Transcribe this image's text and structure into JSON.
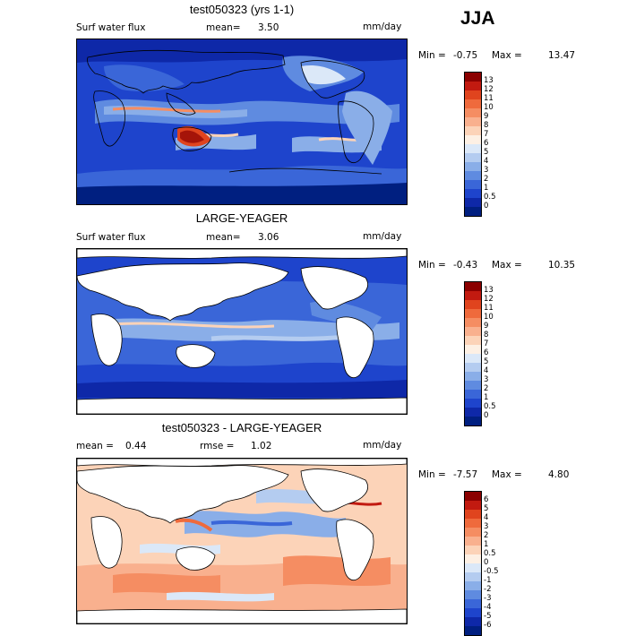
{
  "season": "JJA",
  "panels": [
    {
      "title": "test050323 (yrs 1-1)",
      "left_label": "Surf water flux",
      "mean_label": "mean=",
      "mean_value": "3.50",
      "units": "mm/day",
      "min_label": "Min =",
      "min_value": "-0.75",
      "max_label": "Max =",
      "max_value": "13.47",
      "colorbar_ticks": [
        "13",
        "12",
        "11",
        "10",
        "9",
        "8",
        "7",
        "6",
        "5",
        "4",
        "3",
        "2",
        "1",
        "0.5",
        "0"
      ],
      "colorbar_colors": [
        "#8b0000",
        "#c21a10",
        "#e0441e",
        "#ef6a3c",
        "#f58d62",
        "#f9b08e",
        "#fcd3b8",
        "#fdf0e4",
        "#dbe8f8",
        "#b4ccf0",
        "#8aaee8",
        "#5f8be0",
        "#3a66d8",
        "#1e44cc",
        "#0e28a8",
        "#001f80"
      ]
    },
    {
      "title": "LARGE-YEAGER",
      "left_label": "Surf water flux",
      "mean_label": "mean=",
      "mean_value": "3.06",
      "units": "mm/day",
      "min_label": "Min =",
      "min_value": "-0.43",
      "max_label": "Max =",
      "max_value": "10.35",
      "colorbar_ticks": [
        "13",
        "12",
        "11",
        "10",
        "9",
        "8",
        "7",
        "6",
        "5",
        "4",
        "3",
        "2",
        "1",
        "0.5",
        "0"
      ],
      "colorbar_colors": [
        "#8b0000",
        "#c21a10",
        "#e0441e",
        "#ef6a3c",
        "#f58d62",
        "#f9b08e",
        "#fcd3b8",
        "#fdf0e4",
        "#dbe8f8",
        "#b4ccf0",
        "#8aaee8",
        "#5f8be0",
        "#3a66d8",
        "#1e44cc",
        "#0e28a8",
        "#001f80"
      ]
    },
    {
      "title": "test050323 - LARGE-YEAGER",
      "mean_label": "mean =",
      "mean_value": "0.44",
      "rmse_label": "rmse =",
      "rmse_value": "1.02",
      "units": "mm/day",
      "min_label": "Min =",
      "min_value": "-7.57",
      "max_label": "Max =",
      "max_value": "4.80",
      "colorbar_ticks": [
        "6",
        "5",
        "4",
        "3",
        "2",
        "1",
        "0.5",
        "0",
        "-0.5",
        "-1",
        "-2",
        "-3",
        "-4",
        "-5",
        "-6"
      ],
      "colorbar_colors": [
        "#8b0000",
        "#c21a10",
        "#e0441e",
        "#ef6a3c",
        "#f58d62",
        "#f9b08e",
        "#fcd3b8",
        "#fdf0e4",
        "#dbe8f8",
        "#b4ccf0",
        "#8aaee8",
        "#5f8be0",
        "#3a66d8",
        "#1e44cc",
        "#0e28a8",
        "#001f80"
      ]
    }
  ]
}
